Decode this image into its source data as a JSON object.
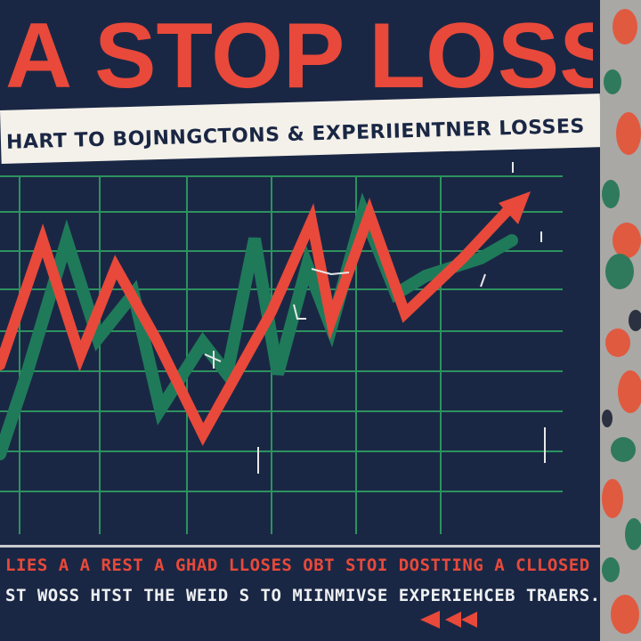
{
  "poster": {
    "title": "A STOP LOSS",
    "subtitle": "HART TO BOJNNGCTONS & EXPERIIENTNER LOSSES",
    "caption_line_1": "LIES A A REST A GHAD LLOSES OBT STOI DOSTTING A CLLOSED",
    "caption_line_2": "ST WOSS HTST THE WEID S TO MIINMIVSE EXPERIEHCEB TRAERS.",
    "nav_icons": [
      "triangle-left-icon",
      "double-triangle-left-icon"
    ]
  },
  "colors": {
    "background": "#1a2744",
    "title": "#e8493a",
    "banner": "#f4f1ea",
    "grid": "#2f9e63",
    "line_red": "#e8493a",
    "line_green": "#1f7a5a",
    "caption_red": "#e8493a",
    "caption_light": "#eef0f2",
    "texture_base": "#a9a8a5",
    "texture_red": "#e05a40",
    "texture_green": "#2f7a5c"
  }
}
